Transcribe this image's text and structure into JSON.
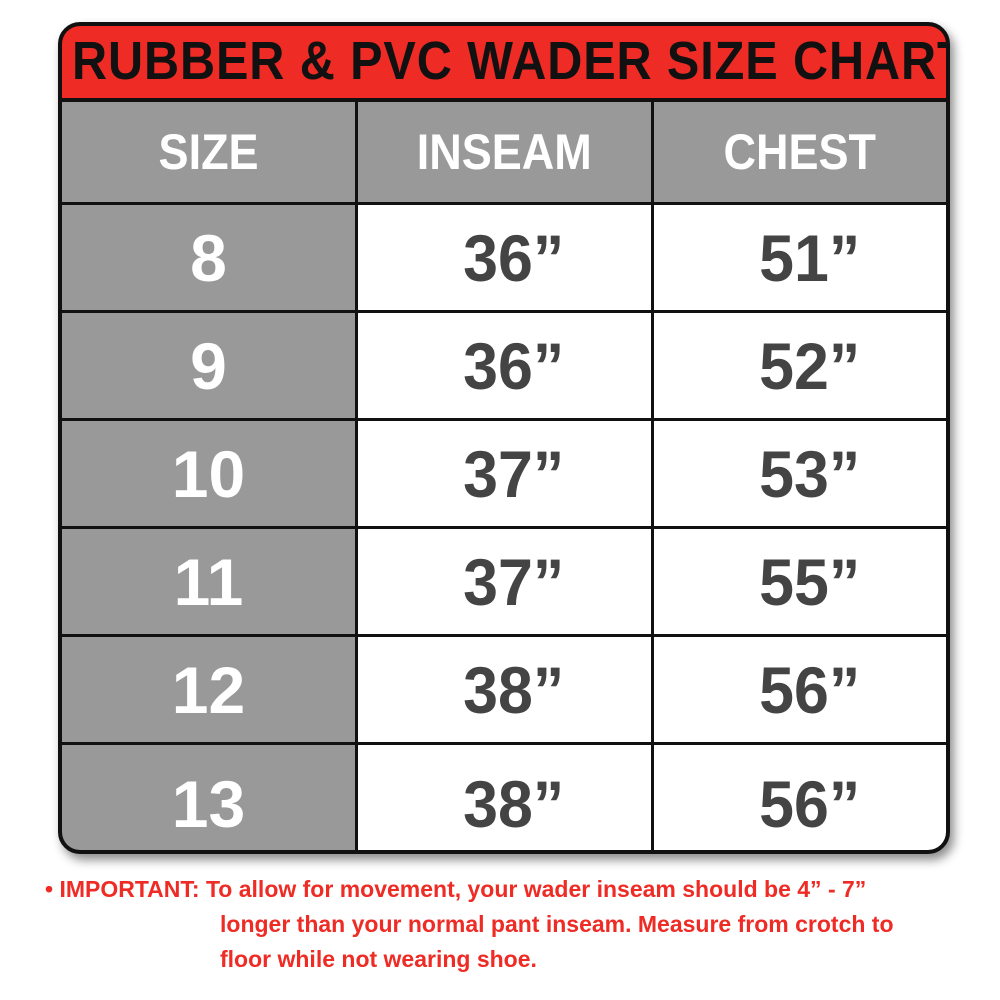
{
  "title": "RUBBER & PVC WADER SIZE CHART",
  "headers": [
    "SIZE",
    "INSEAM",
    "CHEST"
  ],
  "rows": [
    {
      "size": "8",
      "inseam": "36”",
      "chest": "51”"
    },
    {
      "size": "9",
      "inseam": "36”",
      "chest": "52”"
    },
    {
      "size": "10",
      "inseam": "37”",
      "chest": "53”"
    },
    {
      "size": "11",
      "inseam": "37”",
      "chest": "55”"
    },
    {
      "size": "12",
      "inseam": "38”",
      "chest": "56”"
    },
    {
      "size": "13",
      "inseam": "38”",
      "chest": "56”"
    }
  ],
  "note": {
    "bullet": "•",
    "label": "IMPORTANT:",
    "line1": "To allow for movement, your wader inseam should be 4” - 7”",
    "line2": "longer than your normal pant inseam. Measure from crotch to",
    "line3": "floor while not wearing shoe."
  },
  "colors": {
    "accent": "#ee2b24",
    "header_bg": "#999999",
    "value_text": "#444444",
    "border": "#111111"
  }
}
